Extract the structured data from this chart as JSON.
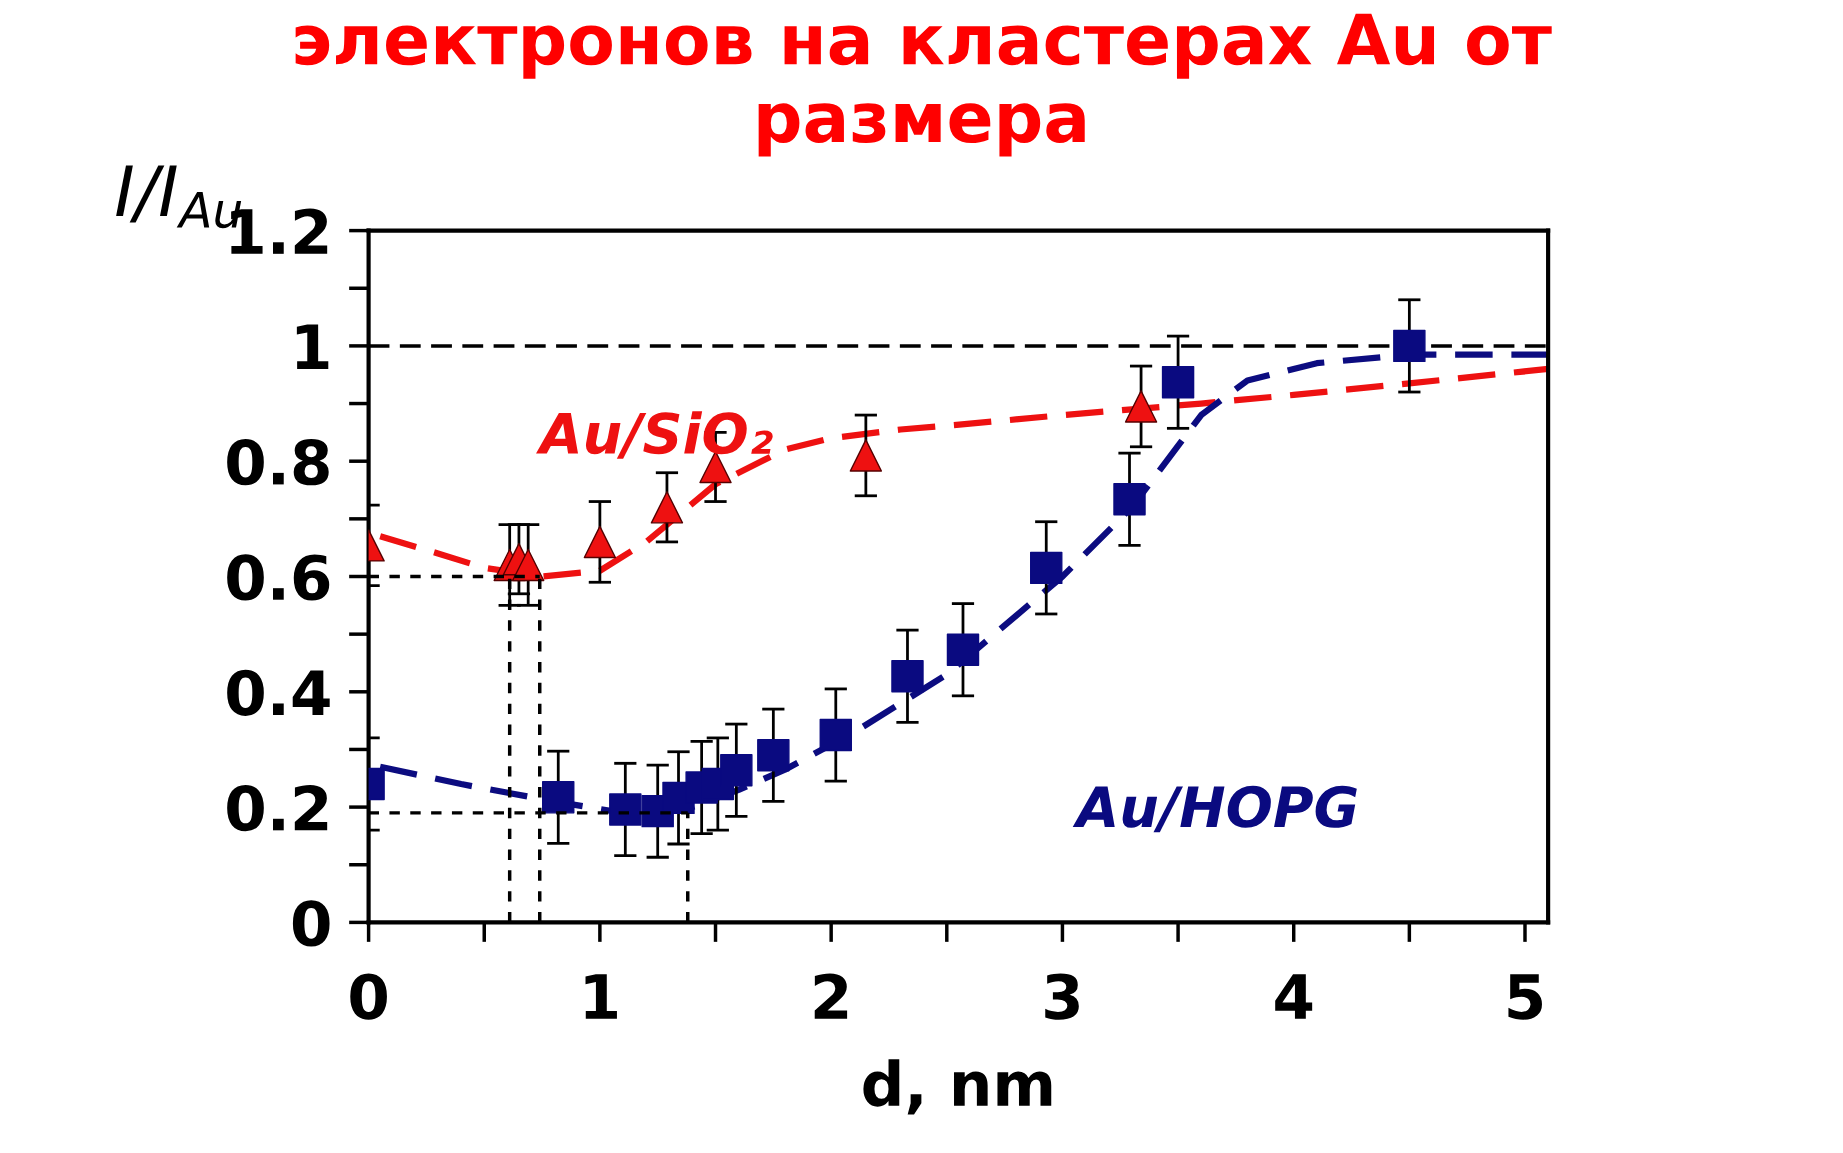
{
  "chart_data": {
    "type": "scatter",
    "title": "электронов на кластерах Au от\nразмера",
    "xlabel": "d, nm",
    "ylabel": "I/I$_{Au}$",
    "xlim": [
      0,
      5.1
    ],
    "ylim": [
      0,
      1.2
    ],
    "xticks": [
      0,
      1,
      2,
      3,
      4,
      5
    ],
    "yticks": [
      0,
      0.2,
      0.4,
      0.6,
      0.8,
      1,
      1.2
    ],
    "grid": false,
    "legend": false,
    "ref_lines": [
      {
        "axis": "y",
        "value": 1,
        "color": "#000000",
        "line_style": "dashed"
      }
    ],
    "series": [
      {
        "type": "line",
        "color": "#ee1111",
        "line_style": "dashed",
        "marker": "none",
        "x": [
          0.05,
          0.3,
          0.5,
          0.75,
          1.0,
          1.2,
          1.5,
          1.8,
          2.0,
          2.3,
          2.6,
          3.0,
          3.3,
          3.6,
          4.0,
          4.5,
          5.1
        ],
        "values": [
          0.67,
          0.64,
          0.615,
          0.6,
          0.61,
          0.66,
          0.76,
          0.82,
          0.84,
          0.855,
          0.865,
          0.88,
          0.89,
          0.9,
          0.915,
          0.935,
          0.96
        ]
      },
      {
        "type": "line",
        "color": "#0c0c80",
        "line_style": "dashed",
        "marker": "none",
        "x": [
          0.05,
          0.4,
          0.8,
          1.1,
          1.4,
          1.6,
          1.8,
          2.1,
          2.5,
          3.0,
          3.3,
          3.6,
          3.8,
          4.1,
          4.5,
          5.1
        ],
        "values": [
          0.27,
          0.24,
          0.21,
          0.19,
          0.2,
          0.23,
          0.265,
          0.33,
          0.43,
          0.6,
          0.72,
          0.88,
          0.94,
          0.97,
          0.985,
          0.985
        ]
      },
      {
        "color": "#ee1111",
        "marker": "triangle",
        "x": [
          0,
          0.61,
          0.65,
          0.69,
          1.0,
          1.29,
          1.5,
          2.15,
          3.34
        ],
        "values": [
          0.654,
          0.62,
          0.63,
          0.62,
          0.66,
          0.72,
          0.79,
          0.81,
          0.895
        ],
        "errors": [
          0.07,
          0.07,
          0.06,
          0.07,
          0.07,
          0.06,
          0.06,
          0.07,
          0.07
        ]
      },
      {
        "color": "#0a0a80",
        "marker": "square",
        "x": [
          0,
          0.82,
          1.11,
          1.25,
          1.34,
          1.44,
          1.51,
          1.59,
          1.75,
          2.02,
          2.33,
          2.57,
          2.93,
          3.29,
          3.5,
          4.5
        ],
        "values": [
          0.24,
          0.217,
          0.196,
          0.193,
          0.216,
          0.234,
          0.24,
          0.264,
          0.29,
          0.325,
          0.427,
          0.473,
          0.615,
          0.734,
          0.937,
          1.0
        ],
        "errors": [
          0.08,
          0.08,
          0.08,
          0.08,
          0.08,
          0.08,
          0.08,
          0.08,
          0.08,
          0.08,
          0.08,
          0.08,
          0.08,
          0.08,
          0.08,
          0.08
        ]
      },
      {
        "type": "line",
        "color": "#000000",
        "line_style": "dashed",
        "marker": "none",
        "x": [
          0,
          0.74
        ],
        "values": [
          0.6,
          0.6
        ]
      },
      {
        "type": "line",
        "color": "#000000",
        "line_style": "dashed",
        "marker": "none",
        "x": [
          0,
          1.38
        ],
        "values": [
          0.19,
          0.19
        ]
      },
      {
        "type": "line",
        "color": "#000000",
        "line_style": "dashed",
        "marker": "none",
        "x": [
          0.61,
          0.61
        ],
        "values": [
          0,
          0.6
        ]
      },
      {
        "type": "line",
        "color": "#000000",
        "line_style": "dashed",
        "marker": "none",
        "x": [
          0.74,
          0.74
        ],
        "values": [
          0,
          0.6
        ]
      },
      {
        "type": "line",
        "color": "#000000",
        "line_style": "dashed",
        "marker": "none",
        "x": [
          1.38,
          1.38
        ],
        "values": [
          0,
          0.19
        ]
      }
    ],
    "annotations": [
      "Au/SiO₂",
      "Au/HOPG"
    ]
  }
}
